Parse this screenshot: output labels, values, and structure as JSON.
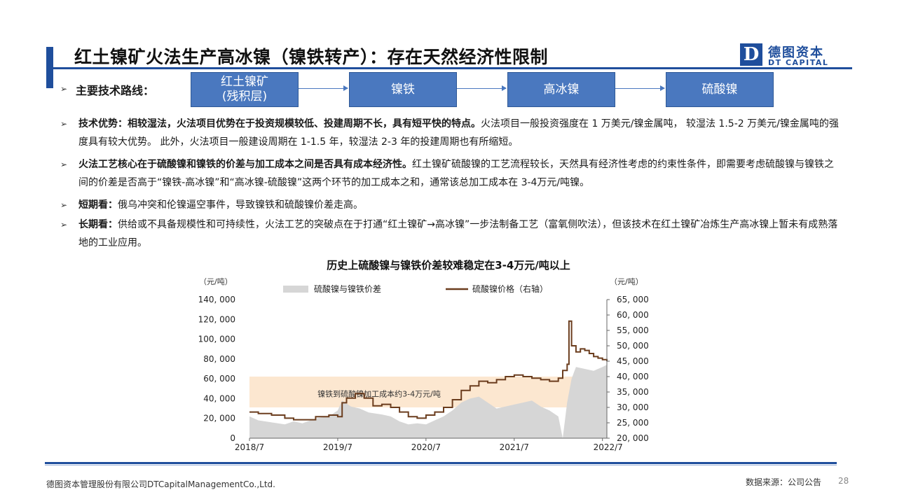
{
  "header": {
    "title": "红土镍矿火法生产高冰镍（镍铁转产）：存在天然经济性限制",
    "logo_mark": "D",
    "logo_cn": "德图资本",
    "logo_en": "DT CAPITAL",
    "accent_color": "#1f4e9c"
  },
  "route": {
    "label": "主要技术路线：",
    "steps": [
      "红土镍矿\n(残积层)",
      "镍铁",
      "高冰镍",
      "硫酸镍"
    ]
  },
  "bullets": [
    {
      "bold": "技术优势：相较湿法，火法项目优势在于投资规模较低、投建周期不长，具有短平快的特点。",
      "text": "火法项目一般投资强度在 1 万美元/镍金属吨， 较湿法 1.5-2 万美元/镍金属吨的强度具有较大优势。 此外，火法项目一般建设周期在 1-1.5 年，较湿法 2-3 年的投建周期也有所缩短。"
    },
    {
      "bold": "火法工艺核心在于硫酸镍和镍铁的价差与加工成本之间是否具有成本经济性。",
      "text": "红土镍矿硫酸镍的工艺流程较长，天然具有经济性考虑的约束性条件，即需要考虑硫酸镍与镍铁之间的价差是否高于“镍铁-高冰镍”和“高冰镍-硫酸镍”这两个环节的加工成本之和，通常该总加工成本在 3-4万元/吨镍。"
    },
    {
      "bold": "短期看：",
      "text": "俄乌冲突和伦镍逼空事件，导致镍铁和硫酸镍价差走高。"
    },
    {
      "bold": "长期看：",
      "text": "供给或不具备规模性和可持续性，火法工艺的突破点在于打通“红土镍矿→高冰镍”一步法制备工艺（富氧侧吹法），但该技术在红土镍矿冶炼生产高冰镍上暂未有成熟落地的工业应用。"
    }
  ],
  "chart_data": {
    "type": "area+line",
    "title": "历史上硫酸镍与镍铁价差较难稳定在3-4万元/吨以上",
    "left_unit": "（元/吨）",
    "right_unit": "（元/吨）",
    "left_ticks": [
      "140, 000",
      "120, 000",
      "100, 000",
      "80, 000",
      "60, 000",
      "40, 000",
      "20, 000",
      "0"
    ],
    "right_ticks": [
      "65, 000",
      "60, 000",
      "55, 000",
      "50, 000",
      "45, 000",
      "40, 000",
      "35, 000",
      "30, 000",
      "25, 000",
      "20, 000"
    ],
    "x_ticks": [
      "2018/7",
      "2019/7",
      "2020/7",
      "2021/7",
      "2022/7"
    ],
    "ylim_left": [
      0,
      140000
    ],
    "ylim_right": [
      20000,
      65000
    ],
    "band": {
      "label": "镍铁到硫酸镍加工成本约3-4万元/吨",
      "from": 30000,
      "to": 40000
    },
    "series": [
      {
        "name": "硫酸镍与镍铁价差",
        "axis": "left",
        "color": "#d6d6d6",
        "x": [
          2018.5,
          2018.6,
          2018.75,
          2018.9,
          2019.0,
          2019.1,
          2019.25,
          2019.4,
          2019.5,
          2019.55,
          2019.65,
          2019.75,
          2019.85,
          2020.0,
          2020.1,
          2020.2,
          2020.3,
          2020.4,
          2020.5,
          2020.6,
          2020.7,
          2020.8,
          2020.9,
          2021.0,
          2021.1,
          2021.2,
          2021.3,
          2021.4,
          2021.5,
          2021.6,
          2021.7,
          2021.8,
          2021.9,
          2022.0,
          2022.05,
          2022.1,
          2022.15,
          2022.2,
          2022.3,
          2022.4,
          2022.5,
          2022.55
        ],
        "y": [
          22000,
          18000,
          16000,
          14000,
          17000,
          15000,
          20000,
          22000,
          28000,
          38000,
          32000,
          30000,
          26000,
          24000,
          22000,
          17000,
          14000,
          15000,
          14000,
          18000,
          22000,
          28000,
          36000,
          40000,
          42000,
          36000,
          30000,
          32000,
          34000,
          36000,
          38000,
          32000,
          28000,
          22000,
          0,
          36000,
          60000,
          72000,
          70000,
          68000,
          72000,
          74000
        ]
      },
      {
        "name": "硫酸镍价格（右轴）",
        "axis": "right",
        "color": "#6b3d1e",
        "x": [
          2018.5,
          2018.6,
          2018.75,
          2018.9,
          2019.0,
          2019.1,
          2019.25,
          2019.4,
          2019.5,
          2019.55,
          2019.6,
          2019.7,
          2019.8,
          2019.9,
          2020.0,
          2020.1,
          2020.2,
          2020.3,
          2020.4,
          2020.5,
          2020.6,
          2020.7,
          2020.8,
          2020.9,
          2021.0,
          2021.1,
          2021.2,
          2021.3,
          2021.4,
          2021.5,
          2021.6,
          2021.7,
          2021.8,
          2021.9,
          2022.0,
          2022.05,
          2022.1,
          2022.12,
          2022.15,
          2022.2,
          2022.25,
          2022.3,
          2022.35,
          2022.4,
          2022.45,
          2022.5,
          2022.55
        ],
        "y": [
          28500,
          28000,
          27500,
          26500,
          26000,
          26000,
          27000,
          27500,
          27000,
          31500,
          33000,
          34500,
          33000,
          30500,
          31000,
          30000,
          28500,
          27000,
          26500,
          27500,
          28500,
          30000,
          32500,
          35500,
          37000,
          38500,
          38000,
          39000,
          40000,
          40500,
          40000,
          39500,
          39000,
          38500,
          39500,
          42000,
          44000,
          58000,
          50000,
          48000,
          49000,
          48500,
          47500,
          46500,
          46000,
          45500,
          45000
        ]
      }
    ]
  },
  "footer": {
    "company": "德图资本管理股份有限公司DTCapitalManagementCo.,Ltd.",
    "source": "数据来源：公司公告",
    "page": "28"
  }
}
